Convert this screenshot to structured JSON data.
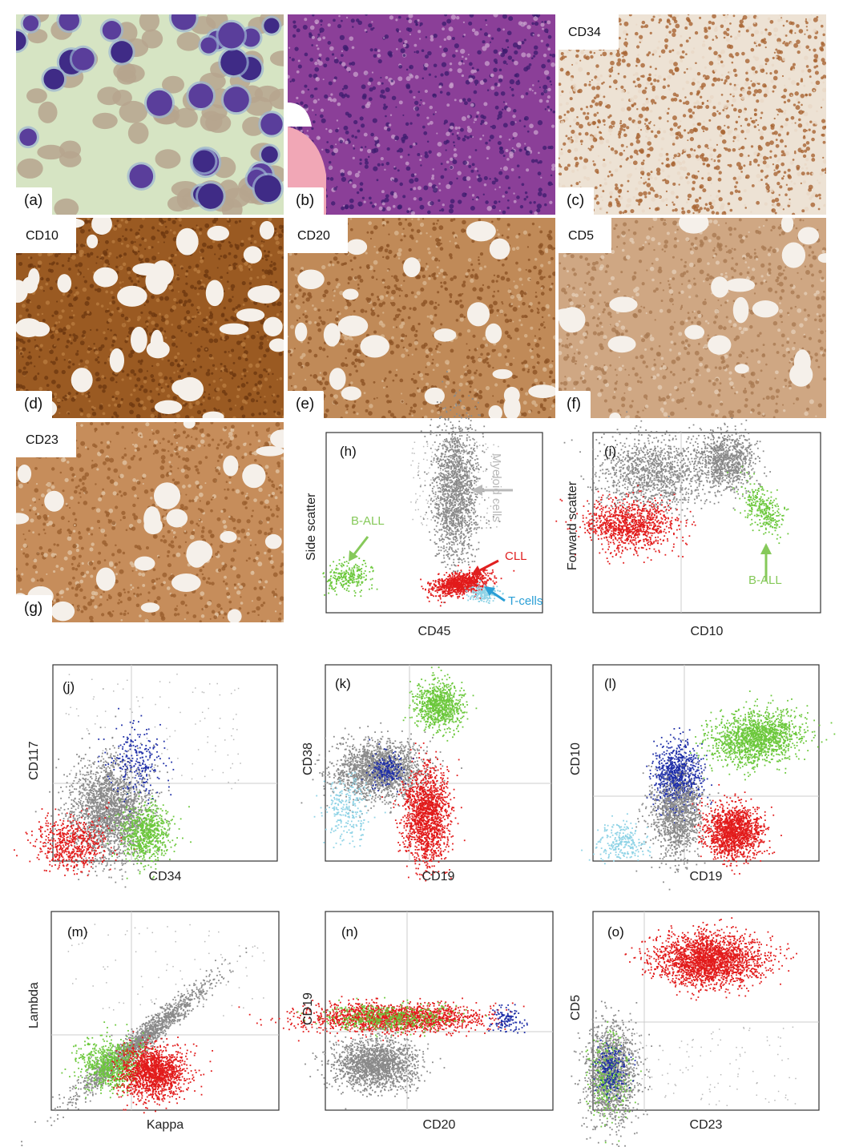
{
  "panels": {
    "a": {
      "letter": "(a)"
    },
    "b": {
      "letter": "(b)"
    },
    "c": {
      "letter": "(c)",
      "stain": "CD34"
    },
    "d": {
      "letter": "(d)",
      "stain": "CD10"
    },
    "e": {
      "letter": "(e)",
      "stain": "CD20"
    },
    "f": {
      "letter": "(f)",
      "stain": "CD5"
    },
    "g": {
      "letter": "(g)",
      "stain": "CD23"
    }
  },
  "plots": {
    "h": {
      "letter": "(h)",
      "xlabel": "CD45",
      "ylabel": "Side scatter",
      "annotations": {
        "myeloid": "Myeloid cells",
        "ball": "B-ALL",
        "cll": "CLL",
        "tcells": "T-cells"
      }
    },
    "i": {
      "letter": "(i)",
      "xlabel": "CD10",
      "ylabel": "Forward scatter",
      "annotations": {
        "ball": "B-ALL"
      }
    },
    "j": {
      "letter": "(j)",
      "xlabel": "CD34",
      "ylabel": "CD117"
    },
    "k": {
      "letter": "(k)",
      "xlabel": "CD19",
      "ylabel": "CD38"
    },
    "l": {
      "letter": "(l)",
      "xlabel": "CD19",
      "ylabel": "CD10"
    },
    "m": {
      "letter": "(m)",
      "xlabel": "Kappa",
      "ylabel": "Lambda"
    },
    "n": {
      "letter": "(n)",
      "xlabel": "CD20",
      "ylabel": "CD19"
    },
    "o": {
      "letter": "(o)",
      "xlabel": "CD23",
      "ylabel": "CD5"
    }
  },
  "colors": {
    "gray": "#8a8a8a",
    "red": "#e21b1b",
    "green": "#6cc83c",
    "cyan": "#8fd3e6",
    "blue": "#1f2fa8",
    "annotation_gray": "#b9b9b9",
    "annotation_green": "#86c95a",
    "annotation_red": "#e02020",
    "annotation_blue": "#2a9fd6",
    "wright_bg": "#d9e6c7",
    "he": "#8a3e97",
    "ihc": "#b0713a"
  }
}
